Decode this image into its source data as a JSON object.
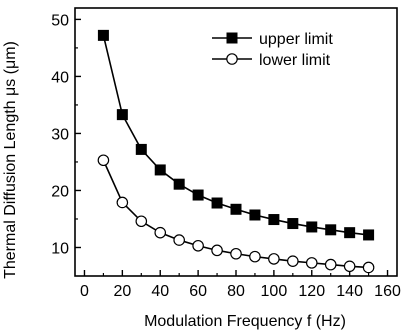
{
  "chart_data": {
    "type": "line",
    "title": "",
    "xlabel": "Modulation Frequency f    (Hz)",
    "ylabel": "Thermal Diffusion Length μs (μm)",
    "xlim": [
      -5,
      165
    ],
    "ylim": [
      5,
      52
    ],
    "xticks": [
      0,
      20,
      40,
      60,
      80,
      100,
      120,
      140,
      160
    ],
    "yticks": [
      10,
      20,
      30,
      40,
      50
    ],
    "grid": false,
    "legend_position": "top-right",
    "x": [
      10,
      20,
      30,
      40,
      50,
      60,
      70,
      80,
      90,
      100,
      110,
      120,
      130,
      140,
      150
    ],
    "series": [
      {
        "name": "upper limit",
        "marker": "filled-square",
        "color": "#000000",
        "values": [
          47.2,
          33.3,
          27.2,
          23.6,
          21.1,
          19.2,
          17.8,
          16.7,
          15.7,
          14.9,
          14.2,
          13.6,
          13.1,
          12.6,
          12.2
        ]
      },
      {
        "name": "lower limit",
        "marker": "open-circle",
        "color": "#000000",
        "values": [
          25.3,
          17.9,
          14.6,
          12.6,
          11.3,
          10.3,
          9.5,
          8.9,
          8.4,
          8.0,
          7.6,
          7.3,
          7.0,
          6.7,
          6.5
        ]
      }
    ]
  }
}
